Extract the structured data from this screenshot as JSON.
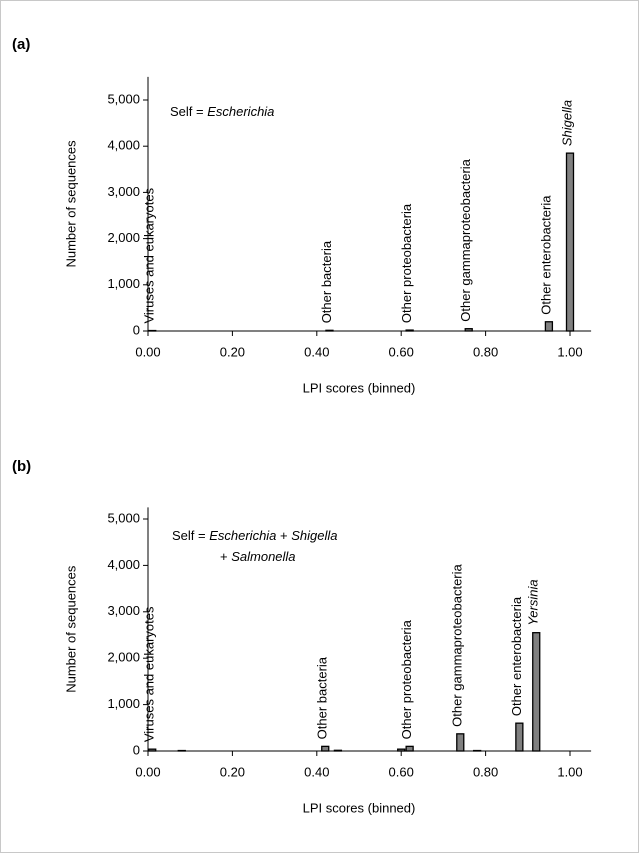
{
  "chart_data": [
    {
      "type": "bar",
      "panel_label": "(a)",
      "xlabel": "LPI scores (binned)",
      "ylabel": "Number of sequences",
      "annotation": [
        [
          {
            "text": "Self = "
          },
          {
            "text": "Escherichia",
            "italic": true
          }
        ]
      ],
      "x": [
        0.01,
        0.43,
        0.62,
        0.76,
        0.95,
        1.0
      ],
      "values": [
        10,
        15,
        20,
        50,
        200,
        3850
      ],
      "labels": [
        {
          "text": "Viruses and eukaryotes"
        },
        {
          "text": "Other bacteria"
        },
        {
          "text": "Other proteobacteria"
        },
        {
          "text": "Other gammaproteobacteria"
        },
        {
          "text": "Other enterobacteria"
        },
        {
          "text": "Shigella",
          "italic": true
        }
      ],
      "color": "#808080",
      "xlim": [
        0,
        1.05
      ],
      "xticks": [
        {
          "value": 0,
          "label": "0.00"
        },
        {
          "value": 0.2,
          "label": "0.20"
        },
        {
          "value": 0.4,
          "label": "0.40"
        },
        {
          "value": 0.6,
          "label": "0.60"
        },
        {
          "value": 0.8,
          "label": "0.80"
        },
        {
          "value": 1,
          "label": "1.00"
        }
      ],
      "ylim": [
        0,
        5500
      ],
      "yticks": [
        0,
        {
          "value": 1000,
          "label": "1,000"
        },
        {
          "value": 2000,
          "label": "2,000"
        },
        {
          "value": 3000,
          "label": "3,000"
        },
        {
          "value": 4000,
          "label": "4,000"
        },
        {
          "value": 5000,
          "label": "5,000"
        }
      ]
    },
    {
      "type": "bar",
      "panel_label": "(b)",
      "xlabel": "LPI scores (binned)",
      "ylabel": "Number of sequences",
      "annotation": [
        [
          {
            "text": "Self = "
          },
          {
            "text": "Escherichia",
            "italic": true
          },
          {
            "text": " + "
          },
          {
            "text": "Shigella",
            "italic": true
          }
        ],
        [
          {
            "text": "+ "
          },
          {
            "text": "Salmonella",
            "italic": true
          }
        ]
      ],
      "x": [
        0.01,
        0.08,
        0.42,
        0.45,
        0.6,
        0.62,
        0.74,
        0.78,
        0.88,
        0.92
      ],
      "values": [
        40,
        10,
        100,
        15,
        40,
        100,
        370,
        10,
        600,
        2550
      ],
      "labels": [
        {
          "text": "Viruses and eukaryotes"
        },
        null,
        {
          "text": "Other bacteria"
        },
        null,
        null,
        {
          "text": "Other proteobacteria"
        },
        {
          "text": "Other gammaproteobacteria"
        },
        null,
        {
          "text": "Other enterobacteria"
        },
        {
          "text": "Yersinia",
          "italic": true
        }
      ],
      "color": "#808080",
      "xlim": [
        0,
        1.05
      ],
      "xticks": [
        {
          "value": 0,
          "label": "0.00"
        },
        {
          "value": 0.2,
          "label": "0.20"
        },
        {
          "value": 0.4,
          "label": "0.40"
        },
        {
          "value": 0.6,
          "label": "0.60"
        },
        {
          "value": 0.8,
          "label": "0.80"
        },
        {
          "value": 1,
          "label": "1.00"
        }
      ],
      "ylim": [
        0,
        5250
      ],
      "yticks": [
        0,
        {
          "value": 1000,
          "label": "1,000"
        },
        {
          "value": 2000,
          "label": "2,000"
        },
        {
          "value": 3000,
          "label": "3,000"
        },
        {
          "value": 4000,
          "label": "4,000"
        },
        {
          "value": 5000,
          "label": "5,000"
        }
      ]
    }
  ]
}
